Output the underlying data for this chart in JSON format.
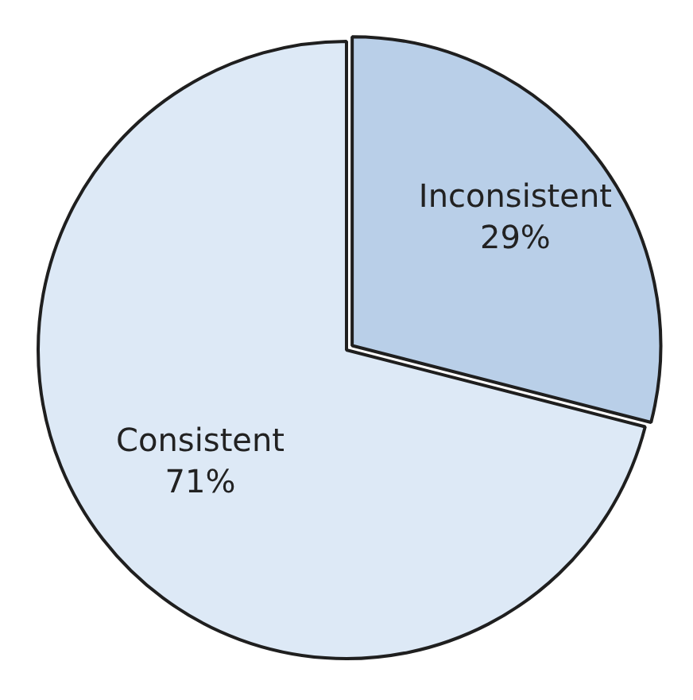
{
  "chart_data": {
    "type": "pie",
    "categories": [
      "Inconsistent",
      "Consistent"
    ],
    "values": [
      29,
      71
    ],
    "colors": [
      "#b9cfe8",
      "#dde9f6"
    ],
    "value_labels": [
      "29%",
      "71%"
    ],
    "legend": false
  }
}
